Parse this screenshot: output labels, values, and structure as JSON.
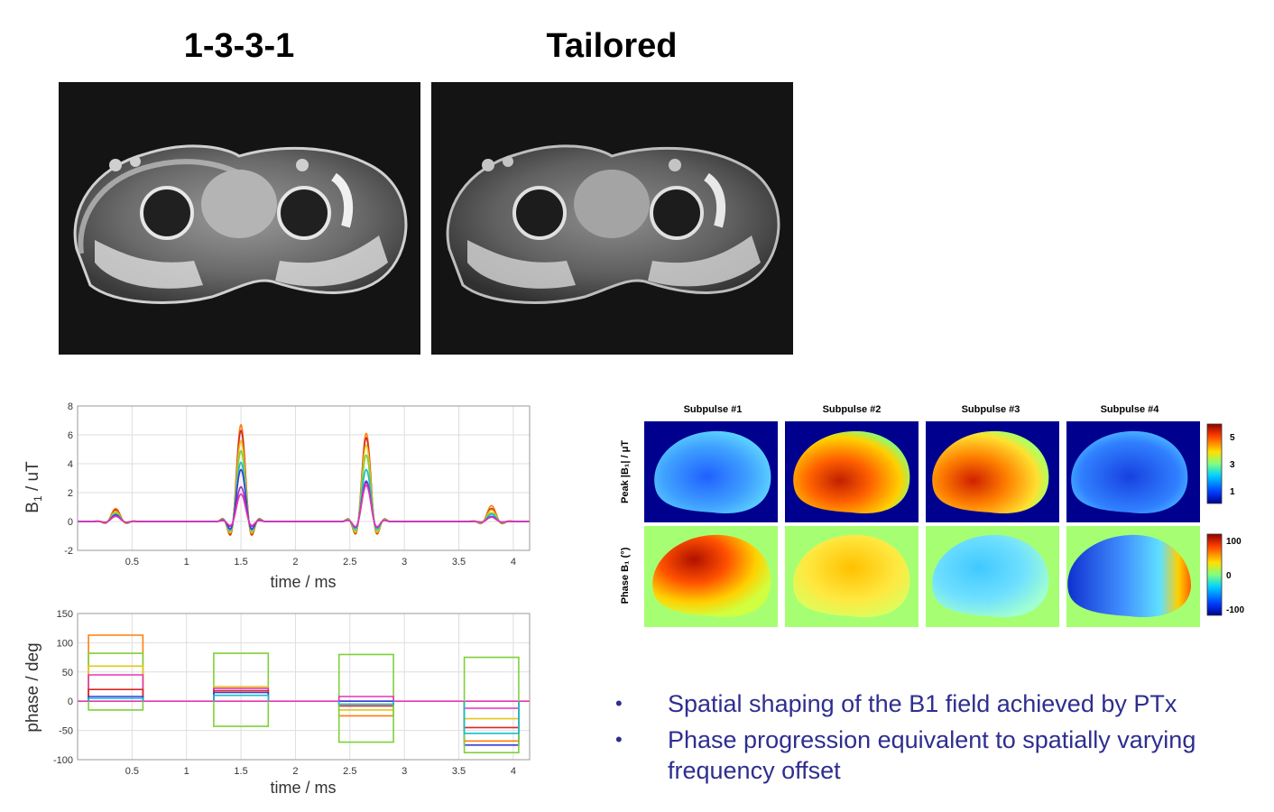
{
  "images": {
    "left_title": "1-3-3-1",
    "right_title": "Tailored"
  },
  "plot_b1": {
    "ylabel": "B",
    "ylabel_sub": "1",
    "ylabel_unit": " / uT",
    "xlabel": "time / ms"
  },
  "plot_phase": {
    "ylabel": "phase / deg",
    "xlabel": "time / ms"
  },
  "maps": {
    "col_titles": [
      "Subpulse #1",
      "Subpulse #2",
      "Subpulse #3",
      "Subpulse #4"
    ],
    "row1_label": "Peak |B₁| / μT",
    "row2_label": "Phase B₁ (°)",
    "cbar1_ticks": [
      "5",
      "3",
      "1"
    ],
    "cbar2_ticks": [
      "100",
      "0",
      "-100"
    ]
  },
  "bullets": [
    "Spatial shaping of the B1 field achieved by PTx",
    "Phase progression equivalent to spatially varying frequency offset"
  ],
  "bullet_symbol": "•",
  "chart_data": [
    {
      "type": "line",
      "title": "",
      "xlabel": "time / ms",
      "ylabel": "B1 / uT",
      "xlim": [
        0,
        4.15
      ],
      "ylim": [
        -2,
        8
      ],
      "xticks": [
        "0.5",
        "1",
        "1.5",
        "2",
        "2.5",
        "3",
        "3.5",
        "4"
      ],
      "yticks": [
        "8",
        "6",
        "4",
        "2",
        "0",
        "-2"
      ],
      "grid": true,
      "pulse_centers": [
        0.35,
        1.5,
        2.65,
        3.8
      ],
      "series": [
        {
          "name": "orange",
          "color": "#ff7f0e",
          "peaks": [
            0.9,
            6.7,
            6.1,
            1.1
          ]
        },
        {
          "name": "red",
          "color": "#d62728",
          "peaks": [
            0.8,
            6.3,
            5.8,
            0.9
          ]
        },
        {
          "name": "yellow",
          "color": "#e6c619",
          "peaks": [
            0.7,
            5.6,
            5.3,
            0.8
          ]
        },
        {
          "name": "green",
          "color": "#7fd13b",
          "peaks": [
            0.6,
            4.9,
            4.6,
            0.6
          ]
        },
        {
          "name": "cyan",
          "color": "#17becf",
          "peaks": [
            0.5,
            4.1,
            3.6,
            0.5
          ]
        },
        {
          "name": "blue",
          "color": "#3a3ad8",
          "peaks": [
            0.45,
            3.6,
            2.8,
            0.35
          ]
        },
        {
          "name": "purple",
          "color": "#9b2fbf",
          "peaks": [
            0.4,
            2.4,
            2.7,
            0.3
          ]
        },
        {
          "name": "magenta",
          "color": "#e535b5",
          "peaks": [
            0.35,
            1.9,
            2.5,
            0.3
          ]
        }
      ]
    },
    {
      "type": "line",
      "title": "",
      "xlabel": "time / ms",
      "ylabel": "phase / deg",
      "xlim": [
        0,
        4.15
      ],
      "ylim": [
        -100,
        150
      ],
      "xticks": [
        "0.5",
        "1",
        "1.5",
        "2",
        "2.5",
        "3",
        "3.5",
        "4"
      ],
      "yticks": [
        "150",
        "100",
        "50",
        "0",
        "-50",
        "-100"
      ],
      "grid": true,
      "segments": [
        [
          0.1,
          0.6
        ],
        [
          1.25,
          1.75
        ],
        [
          2.4,
          2.9
        ],
        [
          3.55,
          4.05
        ]
      ],
      "series": [
        {
          "name": "orange",
          "color": "#ff7f0e",
          "levels": [
            113,
            15,
            -25,
            -68
          ]
        },
        {
          "name": "green",
          "color": "#7fd13b",
          "levels": [
            82,
            82,
            80,
            75
          ]
        },
        {
          "name": "yellow",
          "color": "#e6c619",
          "levels": [
            60,
            25,
            -15,
            -30
          ]
        },
        {
          "name": "magenta",
          "color": "#e535b5",
          "levels": [
            45,
            22,
            8,
            -12
          ]
        },
        {
          "name": "red",
          "color": "#d62728",
          "levels": [
            20,
            18,
            -8,
            -45
          ]
        },
        {
          "name": "blue",
          "color": "#3a3ad8",
          "levels": [
            8,
            15,
            0,
            -75
          ]
        },
        {
          "name": "green-low",
          "color": "#7fd13b",
          "levels": [
            -15,
            -43,
            -70,
            -88
          ]
        },
        {
          "name": "cyan",
          "color": "#17becf",
          "levels": [
            5,
            10,
            -5,
            -55
          ]
        }
      ]
    }
  ]
}
